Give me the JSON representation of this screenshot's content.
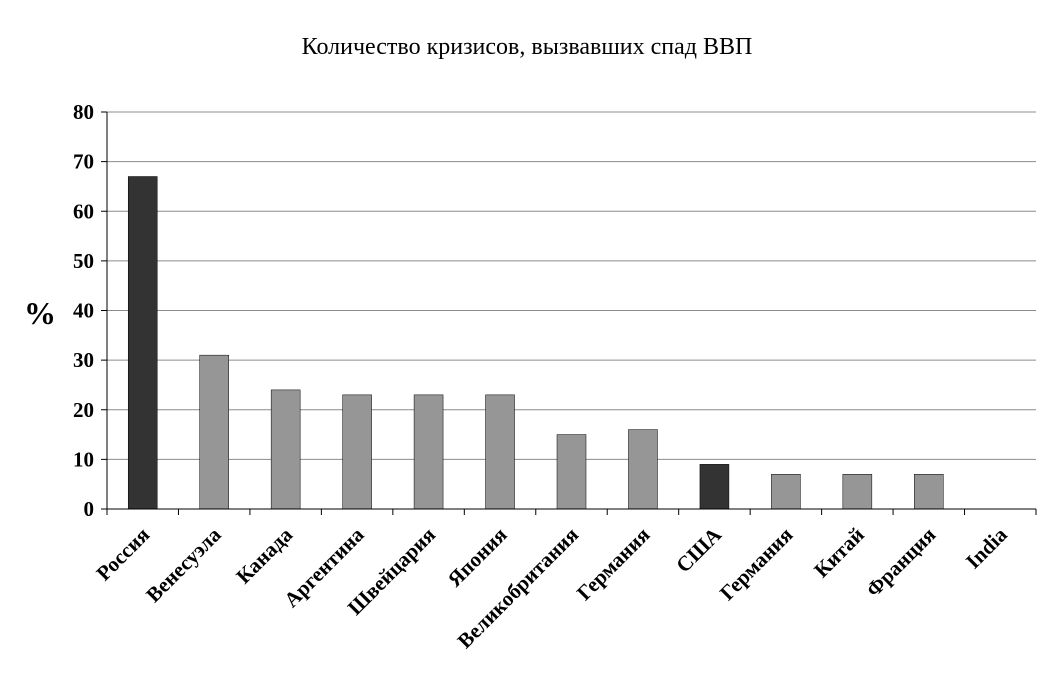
{
  "chart_data": {
    "type": "bar",
    "title": "Количество кризисов, вызвавших спад ВВП",
    "xlabel": "",
    "ylabel": "%",
    "ylim": [
      0,
      80
    ],
    "yticks": [
      0,
      10,
      20,
      30,
      40,
      50,
      60,
      70,
      80
    ],
    "grid": true,
    "legend": "none",
    "categories": [
      "Россия",
      "Венесуэла",
      "Канада",
      "Аргентина",
      "Швейцария",
      "Япония",
      "Великобритания",
      "Германия",
      "США",
      "Германия",
      "Китай",
      "Франция",
      "India"
    ],
    "values": [
      67,
      31,
      24,
      23,
      23,
      23,
      15,
      16,
      9,
      7,
      7,
      7,
      0
    ],
    "bar_colors": [
      "#333333",
      "#969696",
      "#969696",
      "#969696",
      "#969696",
      "#969696",
      "#969696",
      "#969696",
      "#333333",
      "#969696",
      "#969696",
      "#969696",
      "#969696"
    ]
  }
}
